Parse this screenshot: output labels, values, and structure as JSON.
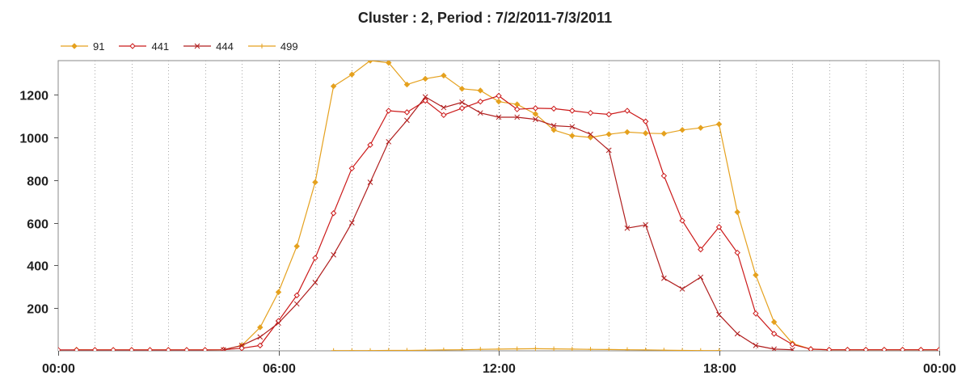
{
  "chart_data": {
    "type": "line",
    "title": "Cluster : 2, Period : 7/2/2011-7/3/2011",
    "xlabel": "",
    "ylabel": "",
    "x_tick_labels": [
      "00:00",
      "06:00",
      "12:00",
      "18:00",
      "00:00"
    ],
    "y_ticks": [
      200,
      400,
      600,
      800,
      1000,
      1200
    ],
    "xlim": [
      0,
      24
    ],
    "ylim": [
      0,
      1360
    ],
    "grid": "vertical-dotted",
    "legend_position": "top-left",
    "series": [
      {
        "name": "91",
        "color": "#E5A11E",
        "marker": "diamond",
        "points": [
          [
            0.5,
            5
          ],
          [
            1,
            4
          ],
          [
            1.5,
            4
          ],
          [
            2,
            4
          ],
          [
            2.5,
            4
          ],
          [
            3,
            4
          ],
          [
            3.5,
            4
          ],
          [
            4,
            4
          ],
          [
            4.5,
            5
          ],
          [
            5,
            25
          ],
          [
            5.5,
            110
          ],
          [
            6,
            275
          ],
          [
            6.5,
            490
          ],
          [
            7,
            790
          ],
          [
            7.5,
            1240
          ],
          [
            8,
            1295
          ],
          [
            8.5,
            1360
          ],
          [
            9,
            1350
          ],
          [
            9.5,
            1248
          ],
          [
            10,
            1275
          ],
          [
            10.5,
            1290
          ],
          [
            11,
            1228
          ],
          [
            11.5,
            1220
          ],
          [
            12,
            1168
          ],
          [
            12.5,
            1155
          ],
          [
            13,
            1110
          ],
          [
            13.5,
            1035
          ],
          [
            14,
            1008
          ],
          [
            14.5,
            1000
          ],
          [
            15,
            1015
          ],
          [
            15.5,
            1025
          ],
          [
            16,
            1020
          ],
          [
            16.5,
            1018
          ],
          [
            17,
            1035
          ],
          [
            17.5,
            1045
          ],
          [
            18,
            1062
          ],
          [
            18.5,
            650
          ],
          [
            19,
            355
          ],
          [
            19.5,
            135
          ],
          [
            20,
            35
          ],
          [
            20.5,
            8
          ],
          [
            21,
            5
          ],
          [
            21.5,
            5
          ],
          [
            22,
            5
          ],
          [
            22.5,
            5
          ],
          [
            23,
            5
          ],
          [
            23.5,
            5
          ],
          [
            24,
            5
          ]
        ]
      },
      {
        "name": "441",
        "color": "#CC1A1A",
        "marker": "diamond-open",
        "points": [
          [
            0,
            4
          ],
          [
            0.5,
            4
          ],
          [
            1,
            4
          ],
          [
            1.5,
            4
          ],
          [
            2,
            4
          ],
          [
            2.5,
            4
          ],
          [
            3,
            4
          ],
          [
            3.5,
            4
          ],
          [
            4,
            4
          ],
          [
            4.5,
            5
          ],
          [
            5,
            12
          ],
          [
            5.5,
            25
          ],
          [
            6,
            140
          ],
          [
            6.5,
            260
          ],
          [
            7,
            435
          ],
          [
            7.5,
            645
          ],
          [
            8,
            855
          ],
          [
            8.5,
            965
          ],
          [
            9,
            1125
          ],
          [
            9.5,
            1118
          ],
          [
            10,
            1172
          ],
          [
            10.5,
            1105
          ],
          [
            11,
            1137
          ],
          [
            11.5,
            1168
          ],
          [
            12,
            1195
          ],
          [
            12.5,
            1132
          ],
          [
            13,
            1137
          ],
          [
            13.5,
            1135
          ],
          [
            14,
            1125
          ],
          [
            14.5,
            1115
          ],
          [
            15,
            1108
          ],
          [
            15.5,
            1125
          ],
          [
            16,
            1075
          ],
          [
            16.5,
            820
          ],
          [
            17,
            610
          ],
          [
            17.5,
            475
          ],
          [
            18,
            580
          ],
          [
            18.5,
            460
          ],
          [
            19,
            175
          ],
          [
            19.5,
            80
          ],
          [
            20,
            30
          ],
          [
            20.5,
            8
          ],
          [
            21,
            5
          ],
          [
            21.5,
            5
          ],
          [
            22,
            5
          ],
          [
            22.5,
            5
          ],
          [
            23,
            5
          ],
          [
            23.5,
            5
          ],
          [
            24,
            5
          ]
        ]
      },
      {
        "name": "444",
        "color": "#B01E1E",
        "marker": "x",
        "points": [
          [
            4.5,
            5
          ],
          [
            5,
            25
          ],
          [
            5.5,
            65
          ],
          [
            6,
            130
          ],
          [
            6.5,
            220
          ],
          [
            7,
            320
          ],
          [
            7.5,
            450
          ],
          [
            8,
            600
          ],
          [
            8.5,
            790
          ],
          [
            9,
            980
          ],
          [
            9.5,
            1080
          ],
          [
            10,
            1190
          ],
          [
            10.5,
            1140
          ],
          [
            11,
            1165
          ],
          [
            11.5,
            1115
          ],
          [
            12,
            1095
          ],
          [
            12.5,
            1095
          ],
          [
            13,
            1085
          ],
          [
            13.5,
            1055
          ],
          [
            14,
            1050
          ],
          [
            14.5,
            1015
          ],
          [
            15,
            940
          ],
          [
            15.5,
            575
          ],
          [
            16,
            590
          ],
          [
            16.5,
            340
          ],
          [
            17,
            290
          ],
          [
            17.5,
            345
          ],
          [
            18,
            170
          ],
          [
            18.5,
            80
          ],
          [
            19,
            25
          ],
          [
            19.5,
            8
          ],
          [
            20,
            5
          ]
        ]
      },
      {
        "name": "499",
        "color": "#E5A11E",
        "marker": "plus",
        "points": [
          [
            7.5,
            1
          ],
          [
            8,
            1
          ],
          [
            8.5,
            1
          ],
          [
            9,
            2
          ],
          [
            9.5,
            2
          ],
          [
            10,
            3
          ],
          [
            10.5,
            4
          ],
          [
            11,
            5
          ],
          [
            11.5,
            7
          ],
          [
            12,
            8
          ],
          [
            12.5,
            9
          ],
          [
            13,
            10
          ],
          [
            13.5,
            9
          ],
          [
            14,
            8
          ],
          [
            14.5,
            7
          ],
          [
            15,
            6
          ],
          [
            15.5,
            5
          ],
          [
            16,
            4
          ],
          [
            16.5,
            3
          ],
          [
            17,
            2
          ],
          [
            17.5,
            1
          ],
          [
            18,
            1
          ]
        ]
      }
    ]
  }
}
